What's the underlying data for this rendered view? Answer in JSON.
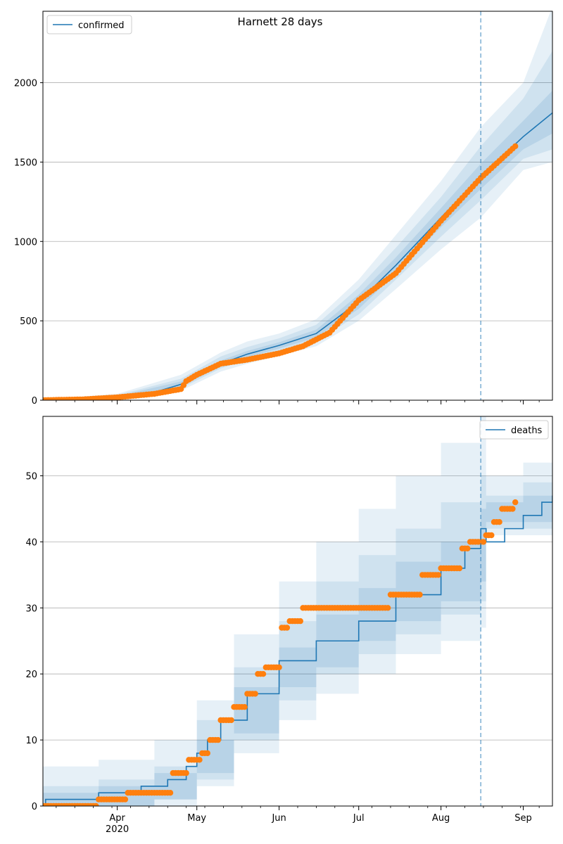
{
  "figure": {
    "title": "Harnett 28 days"
  },
  "colors": {
    "model": "#1f77b4",
    "observed": "#ff7f0e",
    "band": "#1f77b4",
    "grid": "#b0b0b0"
  },
  "x_axis": {
    "ticks": [
      {
        "date": "2020-04-01",
        "label": "Apr",
        "sublabel": "2020"
      },
      {
        "date": "2020-05-01",
        "label": "May",
        "sublabel": ""
      },
      {
        "date": "2020-06-01",
        "label": "Jun",
        "sublabel": ""
      },
      {
        "date": "2020-07-01",
        "label": "Jul",
        "sublabel": ""
      },
      {
        "date": "2020-08-01",
        "label": "Aug",
        "sublabel": ""
      },
      {
        "date": "2020-09-01",
        "label": "Sep",
        "sublabel": ""
      }
    ]
  },
  "chart_data": [
    {
      "type": "line",
      "title": "Harnett 28 days",
      "xlim": [
        "2020-03-04",
        "2020-09-12"
      ],
      "ylim": [
        0,
        2450
      ],
      "yticks": [
        0,
        500,
        1000,
        1500,
        2000
      ],
      "grid": "horizontal",
      "legend": {
        "placement": "top-left",
        "entries": [
          "confirmed"
        ]
      },
      "forecast_start": "2020-08-16",
      "series": [
        {
          "name": "confirmed",
          "kind": "model",
          "x": [
            "2020-03-04",
            "2020-03-19",
            "2020-04-01",
            "2020-04-15",
            "2020-04-25",
            "2020-05-01",
            "2020-05-10",
            "2020-05-20",
            "2020-06-01",
            "2020-06-15",
            "2020-07-01",
            "2020-07-15",
            "2020-08-01",
            "2020-08-16",
            "2020-09-01",
            "2020-09-12"
          ],
          "y": [
            0,
            5,
            20,
            50,
            100,
            160,
            230,
            290,
            345,
            420,
            620,
            850,
            1150,
            1410,
            1660,
            1810
          ]
        },
        {
          "name": "",
          "kind": "observed",
          "x": [
            "2020-03-04",
            "2020-03-19",
            "2020-04-01",
            "2020-04-15",
            "2020-04-25",
            "2020-04-27",
            "2020-05-01",
            "2020-05-10",
            "2020-05-20",
            "2020-06-01",
            "2020-06-10",
            "2020-06-20",
            "2020-07-01",
            "2020-07-15",
            "2020-08-01",
            "2020-08-16",
            "2020-08-29"
          ],
          "y": [
            0,
            5,
            18,
            40,
            70,
            120,
            160,
            230,
            255,
            295,
            340,
            425,
            630,
            800,
            1130,
            1400,
            1600
          ]
        }
      ],
      "bands": {
        "x": [
          "2020-03-04",
          "2020-04-01",
          "2020-04-25",
          "2020-05-10",
          "2020-05-20",
          "2020-06-01",
          "2020-06-15",
          "2020-07-01",
          "2020-07-15",
          "2020-08-01",
          "2020-08-16",
          "2020-09-01",
          "2020-09-12"
        ],
        "levels": [
          {
            "lower": [
              0,
              5,
              60,
              180,
              230,
              280,
              340,
              500,
              700,
              950,
              1150,
              1450,
              1500
            ],
            "upper": [
              5,
              40,
              160,
              300,
              370,
              420,
              510,
              760,
              1040,
              1380,
              1720,
              2000,
              2480
            ]
          },
          {
            "lower": [
              0,
              10,
              75,
              200,
              255,
              305,
              370,
              540,
              760,
              1030,
              1260,
              1520,
              1580
            ],
            "upper": [
              4,
              32,
              135,
              275,
              335,
              390,
              475,
              710,
              960,
              1280,
              1600,
              1900,
              2200
            ]
          },
          {
            "lower": [
              0,
              14,
              85,
              215,
              270,
              325,
              395,
              575,
              800,
              1090,
              1330,
              1580,
              1680
            ],
            "upper": [
              3,
              26,
              118,
              250,
              310,
              365,
              445,
              665,
              900,
              1210,
              1490,
              1760,
              1950
            ]
          }
        ]
      }
    },
    {
      "type": "line",
      "title": "",
      "xlim": [
        "2020-03-04",
        "2020-09-12"
      ],
      "ylim": [
        0,
        59
      ],
      "yticks": [
        0,
        10,
        20,
        30,
        40,
        50
      ],
      "grid": "horizontal",
      "legend": {
        "placement": "top-right",
        "entries": [
          "deaths"
        ]
      },
      "forecast_start": "2020-08-16",
      "series": [
        {
          "name": "deaths",
          "kind": "model",
          "step": true,
          "x": [
            "2020-03-04",
            "2020-03-05",
            "2020-03-25",
            "2020-04-10",
            "2020-04-20",
            "2020-04-27",
            "2020-05-01",
            "2020-05-05",
            "2020-05-10",
            "2020-05-20",
            "2020-06-01",
            "2020-06-15",
            "2020-07-01",
            "2020-07-15",
            "2020-08-01",
            "2020-08-10",
            "2020-08-16",
            "2020-08-18",
            "2020-08-25",
            "2020-09-01",
            "2020-09-08",
            "2020-09-12"
          ],
          "y": [
            0,
            1,
            2,
            3,
            4,
            6,
            8,
            10,
            13,
            17,
            22,
            25,
            28,
            32,
            36,
            39,
            42,
            40,
            42,
            44,
            46,
            47
          ]
        },
        {
          "name": "",
          "kind": "observed",
          "x": [
            "2020-03-04",
            "2020-03-25",
            "2020-04-05",
            "2020-04-15",
            "2020-04-22",
            "2020-04-28",
            "2020-05-03",
            "2020-05-06",
            "2020-05-10",
            "2020-05-15",
            "2020-05-20",
            "2020-05-24",
            "2020-05-27",
            "2020-06-02",
            "2020-06-05",
            "2020-06-10",
            "2020-06-20",
            "2020-07-01",
            "2020-07-10",
            "2020-07-13",
            "2020-07-20",
            "2020-07-25",
            "2020-08-01",
            "2020-08-05",
            "2020-08-09",
            "2020-08-12",
            "2020-08-16",
            "2020-08-18",
            "2020-08-21",
            "2020-08-24",
            "2020-08-27",
            "2020-08-29"
          ],
          "y": [
            0,
            1,
            2,
            2,
            5,
            7,
            8,
            10,
            13,
            15,
            17,
            20,
            21,
            27,
            28,
            30,
            30,
            30,
            30,
            32,
            32,
            35,
            36,
            36,
            39,
            40,
            40,
            41,
            43,
            45,
            45,
            46
          ]
        }
      ],
      "bands": {
        "x": [
          "2020-03-04",
          "2020-03-25",
          "2020-04-15",
          "2020-05-01",
          "2020-05-15",
          "2020-06-01",
          "2020-06-15",
          "2020-07-01",
          "2020-07-15",
          "2020-08-01",
          "2020-08-16",
          "2020-08-18",
          "2020-09-01",
          "2020-09-12"
        ],
        "levels": [
          {
            "lower": [
              0,
              0,
              0,
              3,
              8,
              13,
              17,
              20,
              23,
              25,
              27,
              41,
              41,
              41
            ],
            "upper": [
              6,
              7,
              10,
              16,
              26,
              34,
              40,
              45,
              50,
              55,
              59,
              50,
              52,
              59
            ]
          },
          {
            "lower": [
              0,
              0,
              1,
              4,
              10,
              16,
              20,
              23,
              26,
              29,
              31,
              42,
              42,
              43
            ],
            "upper": [
              3,
              4,
              6,
              13,
              21,
              28,
              34,
              38,
              42,
              46,
              50,
              47,
              49,
              54
            ]
          },
          {
            "lower": [
              0,
              0,
              1,
              5,
              11,
              18,
              21,
              25,
              28,
              31,
              34,
              43,
              43,
              45
            ],
            "upper": [
              2,
              3,
              5,
              10,
              18,
              24,
              29,
              33,
              37,
              40,
              45,
              46,
              47,
              50
            ]
          }
        ]
      }
    }
  ]
}
